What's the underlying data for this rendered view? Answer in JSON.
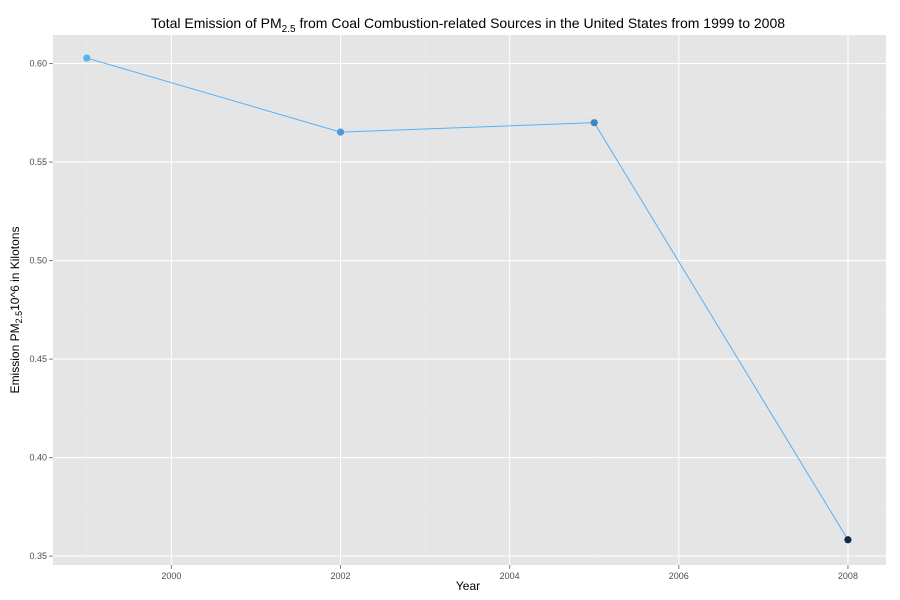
{
  "chart_data": {
    "type": "line",
    "title": {
      "prefix": "Total Emission of PM",
      "subscript": "2.5",
      "suffix": " from Coal Combustion-related Sources in the United States from 1999 to 2008"
    },
    "xlabel": "Year",
    "ylabel": {
      "prefix": "Emission PM",
      "subscript": "2.5",
      "suffix": "10^6 in Kilotons"
    },
    "x": [
      1999,
      2002,
      2005,
      2008
    ],
    "series": [
      {
        "name": "Total Emission",
        "values": [
          0.6028,
          0.5652,
          0.57,
          0.3583
        ]
      }
    ],
    "point_colors": [
      "#56B1F7",
      "#4A9BDD",
      "#3D86C2",
      "#132B43"
    ],
    "line_color": "#56B1F7",
    "xlim": [
      1998.6,
      2008.45
    ],
    "ylim": [
      0.3455,
      0.6145
    ],
    "xticks": [
      2000,
      2002,
      2004,
      2006,
      2008
    ],
    "xtick_labels": [
      "2000",
      "2002",
      "2004",
      "2006",
      "2008"
    ],
    "yticks": [
      0.35,
      0.4,
      0.45,
      0.5,
      0.55,
      0.6
    ],
    "ytick_labels": [
      "0.35",
      "0.40",
      "0.45",
      "0.50",
      "0.55",
      "0.60"
    ],
    "grid": true,
    "panel_background": "#e5e5e5",
    "legend": "none"
  }
}
